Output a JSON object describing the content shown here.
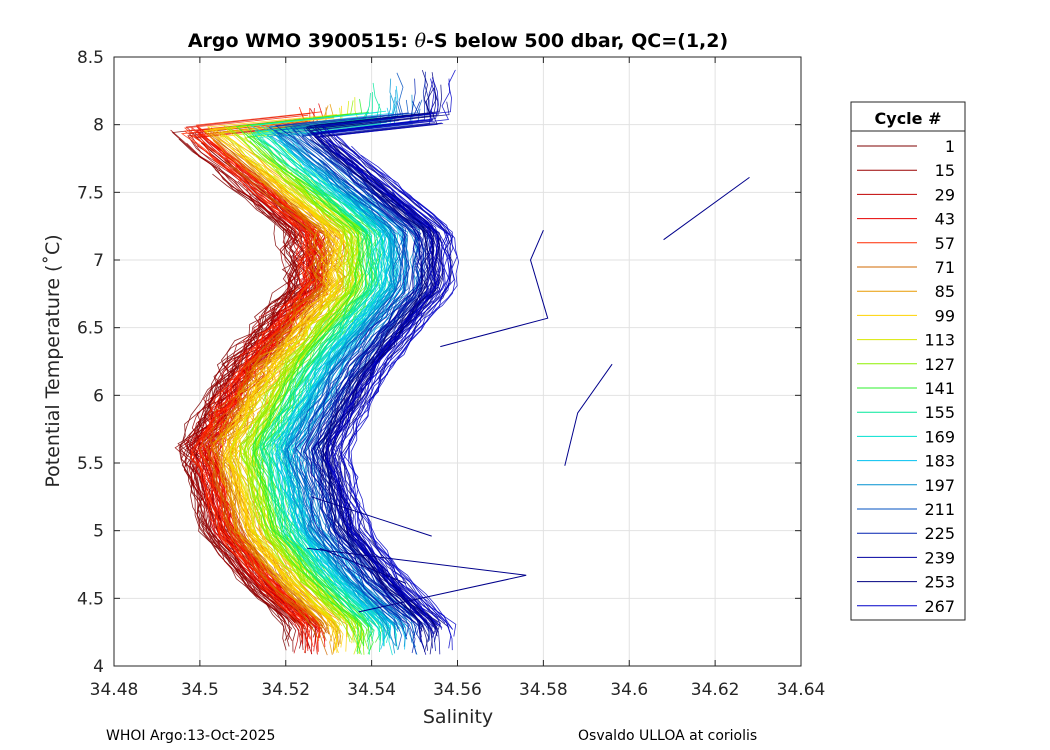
{
  "chart_data": {
    "type": "line",
    "title": "Argo WMO 3900515: θ-S below 500 dbar,  QC=(1,2)",
    "title_parts": {
      "prefix": "Argo WMO 3900515: ",
      "theta": "θ",
      "suffix": "-S below 500 dbar,  QC=(1,2)"
    },
    "xlabel": "Salinity",
    "ylabel": "Potential Temperature (˚C)",
    "xlim": [
      34.48,
      34.64
    ],
    "ylim": [
      4,
      8.5
    ],
    "xticks": [
      "34.48",
      "34.5",
      "34.52",
      "34.54",
      "34.56",
      "34.58",
      "34.6",
      "34.62",
      "34.64"
    ],
    "yticks": [
      "4",
      "4.5",
      "5",
      "5.5",
      "6",
      "6.5",
      "7",
      "7.5",
      "8",
      "8.5"
    ],
    "grid": true,
    "legend": {
      "title": "Cycle #",
      "position": "right",
      "entries": [
        {
          "label": "1",
          "color": "#7f0000"
        },
        {
          "label": "15",
          "color": "#9a0000"
        },
        {
          "label": "29",
          "color": "#c00000"
        },
        {
          "label": "43",
          "color": "#e60000"
        },
        {
          "label": "57",
          "color": "#ff2a00"
        },
        {
          "label": "71",
          "color": "#d06a00"
        },
        {
          "label": "85",
          "color": "#e89a00"
        },
        {
          "label": "99",
          "color": "#ffd200"
        },
        {
          "label": "113",
          "color": "#d8e800"
        },
        {
          "label": "127",
          "color": "#8ef000"
        },
        {
          "label": "141",
          "color": "#2ef02e"
        },
        {
          "label": "155",
          "color": "#00e89a"
        },
        {
          "label": "169",
          "color": "#00e0d0"
        },
        {
          "label": "183",
          "color": "#00c0f0"
        },
        {
          "label": "197",
          "color": "#0090d0"
        },
        {
          "label": "211",
          "color": "#0050c0"
        },
        {
          "label": "225",
          "color": "#0020b0"
        },
        {
          "label": "239",
          "color": "#0000a0"
        },
        {
          "label": "253",
          "color": "#000080"
        },
        {
          "label": "267",
          "color": "#0000c8"
        }
      ]
    },
    "series_shape": {
      "cycles_per_group": 14,
      "envelope_upper": [
        [
          34.505,
          8.0
        ],
        [
          34.52,
          7.6
        ],
        [
          34.535,
          7.2
        ],
        [
          34.535,
          6.8
        ],
        [
          34.52,
          6.2
        ],
        [
          34.51,
          5.6
        ],
        [
          34.515,
          5.0
        ],
        [
          34.525,
          4.6
        ],
        [
          34.535,
          4.3
        ]
      ],
      "offsets_by_group": [
        0.0,
        0.001,
        0.002,
        0.003,
        0.004,
        0.006,
        0.008,
        0.01,
        0.012,
        0.014,
        0.016,
        0.018,
        0.02,
        0.022,
        0.024,
        0.026,
        0.028,
        0.03,
        0.032,
        0.034
      ]
    },
    "outlier_segments": [
      {
        "points": [
          [
            34.608,
            7.15
          ],
          [
            34.628,
            7.61
          ]
        ]
      },
      {
        "points": [
          [
            34.585,
            5.48
          ],
          [
            34.588,
            5.87
          ],
          [
            34.596,
            6.23
          ]
        ]
      },
      {
        "points": [
          [
            34.525,
            4.87
          ],
          [
            34.576,
            4.67
          ],
          [
            34.537,
            4.4
          ]
        ]
      },
      {
        "points": [
          [
            34.526,
            5.25
          ],
          [
            34.554,
            4.96
          ]
        ]
      },
      {
        "points": [
          [
            34.528,
            4.87
          ],
          [
            34.548,
            4.61
          ]
        ]
      },
      {
        "points": [
          [
            34.556,
            6.36
          ],
          [
            34.581,
            6.57
          ],
          [
            34.577,
            7.0
          ],
          [
            34.58,
            7.22
          ]
        ]
      }
    ]
  },
  "footer": {
    "left": "WHOI Argo:13-Oct-2025",
    "right": "Osvaldo ULLOA at coriolis"
  }
}
